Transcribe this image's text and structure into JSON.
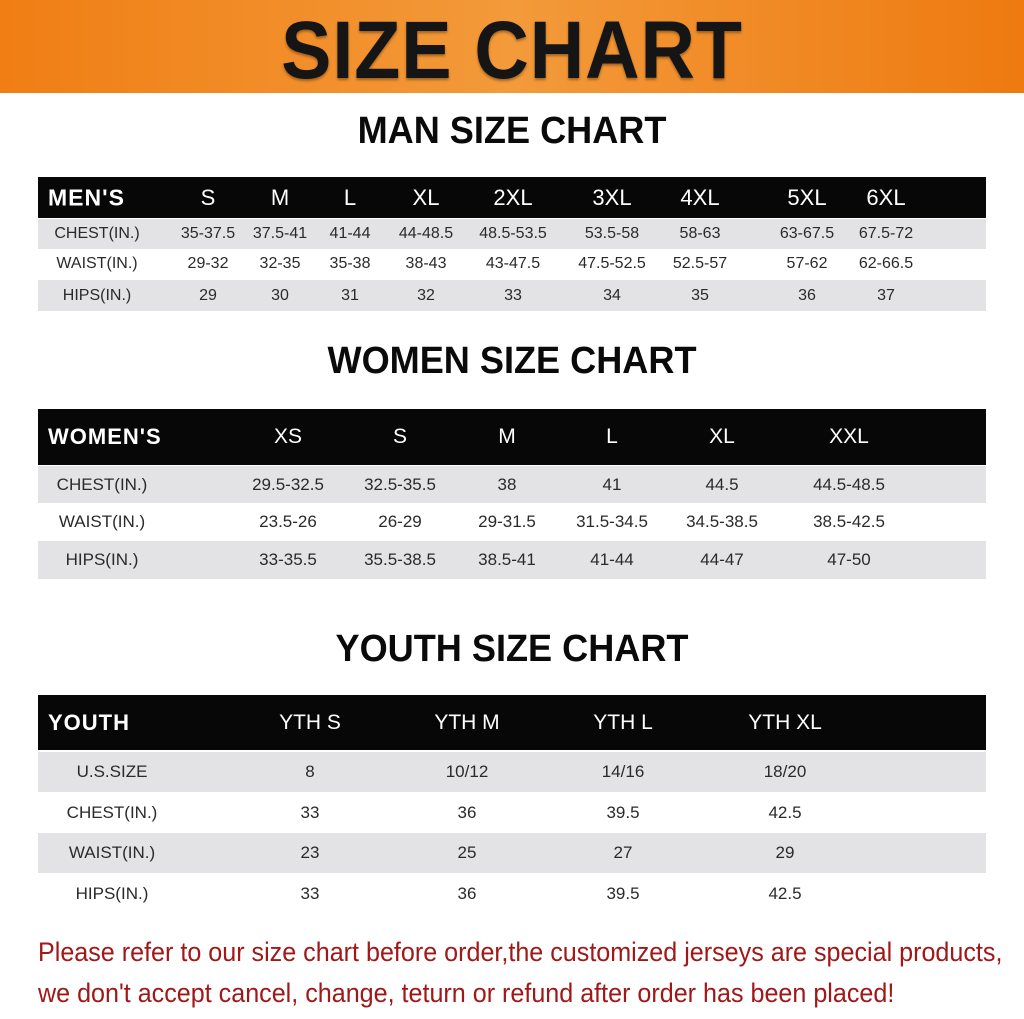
{
  "banner": {
    "title": "SIZE CHART",
    "color": "#f07e14"
  },
  "men": {
    "title": "MAN SIZE CHART",
    "header_label": "MEN'S",
    "sizes": [
      "S",
      "M",
      "L",
      "XL",
      "2XL",
      "3XL",
      "4XL",
      "5XL",
      "6XL"
    ],
    "rows": [
      {
        "label": "CHEST(IN.)",
        "values": [
          "35-37.5",
          "37.5-41",
          "41-44",
          "44-48.5",
          "48.5-53.5",
          "53.5-58",
          "58-63",
          "63-67.5",
          "67.5-72"
        ]
      },
      {
        "label": "WAIST(IN.)",
        "values": [
          "29-32",
          "32-35",
          "35-38",
          "38-43",
          "43-47.5",
          "47.5-52.5",
          "52.5-57",
          "57-62",
          "62-66.5"
        ]
      },
      {
        "label": "HIPS(IN.)",
        "values": [
          "29",
          "30",
          "31",
          "32",
          "33",
          "34",
          "35",
          "36",
          "37"
        ]
      }
    ]
  },
  "women": {
    "title": "WOMEN SIZE CHART",
    "header_label": "WOMEN'S",
    "sizes": [
      "XS",
      "S",
      "M",
      "L",
      "XL",
      "XXL"
    ],
    "rows": [
      {
        "label": "CHEST(IN.)",
        "values": [
          "29.5-32.5",
          "32.5-35.5",
          "38",
          "41",
          "44.5",
          "44.5-48.5"
        ]
      },
      {
        "label": "WAIST(IN.)",
        "values": [
          "23.5-26",
          "26-29",
          "29-31.5",
          "31.5-34.5",
          "34.5-38.5",
          "38.5-42.5"
        ]
      },
      {
        "label": "HIPS(IN.)",
        "values": [
          "33-35.5",
          "35.5-38.5",
          "38.5-41",
          "41-44",
          "44-47",
          "47-50"
        ]
      }
    ]
  },
  "youth": {
    "title": "YOUTH SIZE CHART",
    "header_label": "YOUTH",
    "sizes": [
      "YTH S",
      "YTH M",
      "YTH L",
      "YTH XL"
    ],
    "rows": [
      {
        "label": "U.S.SIZE",
        "values": [
          "8",
          "10/12",
          "14/16",
          "18/20"
        ]
      },
      {
        "label": "CHEST(IN.)",
        "values": [
          "33",
          "36",
          "39.5",
          "42.5"
        ]
      },
      {
        "label": "WAIST(IN.)",
        "values": [
          "23",
          "25",
          "27",
          "29"
        ]
      },
      {
        "label": "HIPS(IN.)",
        "values": [
          "33",
          "36",
          "39.5",
          "42.5"
        ]
      }
    ]
  },
  "notice": {
    "line1": "Please refer to our size chart before order,the customized jerseys are special products,",
    "line2": "we don't accept cancel, change, teturn or refund after order has been placed!",
    "color": "#a01818"
  }
}
